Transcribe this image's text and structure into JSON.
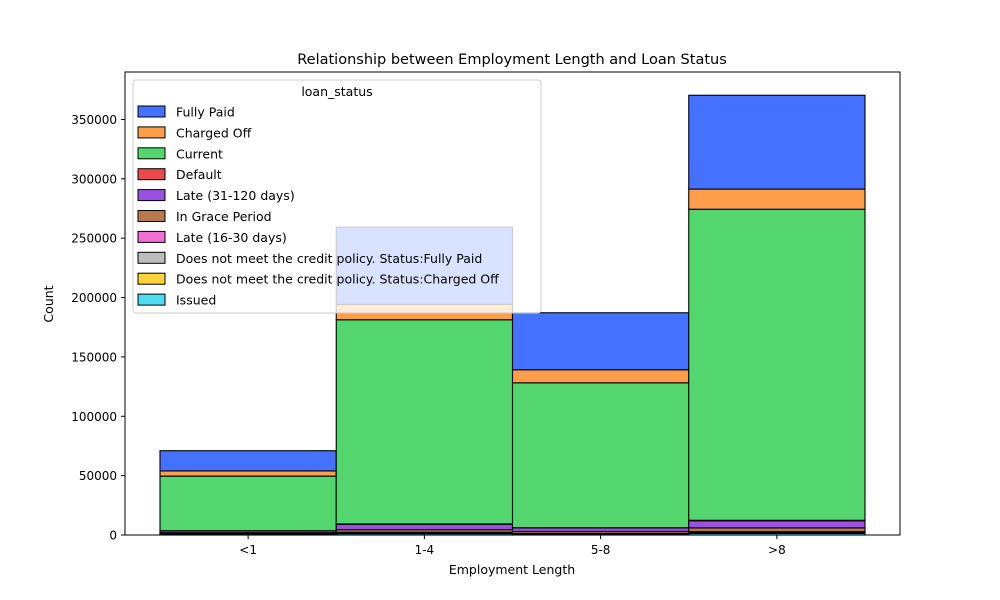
{
  "title": "Relationship between Employment Length and Loan Status",
  "chart_data": {
    "type": "bar",
    "stacked": true,
    "title": "Relationship between Employment Length and Loan Status",
    "xlabel": "Employment Length",
    "ylabel": "Count",
    "categories": [
      "<1",
      "1-4",
      "5-8",
      ">8"
    ],
    "ylim": [
      0,
      390000
    ],
    "yticks": [
      0,
      50000,
      100000,
      150000,
      200000,
      250000,
      300000,
      350000
    ],
    "ytick_labels": [
      "0",
      "50000",
      "100000",
      "150000",
      "200000",
      "250000",
      "300000",
      "350000"
    ],
    "grid": false,
    "legend": {
      "title": "loan_status",
      "placement": "upper-left"
    },
    "series": [
      {
        "name": "Issued",
        "color": "#4ddcf4",
        "values": [
          400,
          1200,
          700,
          1400
        ]
      },
      {
        "name": "Does not meet the credit policy. Status:Charged Off",
        "color": "#ffd43b",
        "values": [
          100,
          200,
          100,
          200
        ]
      },
      {
        "name": "Does not meet the credit policy. Status:Fully Paid",
        "color": "#bdbdbd",
        "values": [
          200,
          400,
          200,
          400
        ]
      },
      {
        "name": "Late (16-30 days)",
        "color": "#f06fd1",
        "values": [
          300,
          500,
          400,
          800
        ]
      },
      {
        "name": "In Grace Period",
        "color": "#b87a4c",
        "values": [
          900,
          2200,
          1600,
          3200
        ]
      },
      {
        "name": "Late (31-120 days)",
        "color": "#9a50e0",
        "values": [
          1600,
          4500,
          3000,
          6000
        ]
      },
      {
        "name": "Default",
        "color": "#e84a4f",
        "values": [
          100,
          300,
          200,
          400
        ]
      },
      {
        "name": "Current",
        "color": "#54d66e",
        "values": [
          46000,
          172000,
          122000,
          262000
        ]
      },
      {
        "name": "Charged Off",
        "color": "#ff9e4a",
        "values": [
          4400,
          13000,
          11000,
          17000
        ]
      },
      {
        "name": "Fully Paid",
        "color": "#4472ff",
        "values": [
          17000,
          65000,
          48000,
          79000
        ]
      }
    ]
  },
  "legend_order": [
    "Fully Paid",
    "Charged Off",
    "Current",
    "Default",
    "Late (31-120 days)",
    "In Grace Period",
    "Late (16-30 days)",
    "Does not meet the credit policy. Status:Fully Paid",
    "Does not meet the credit policy. Status:Charged Off",
    "Issued"
  ]
}
